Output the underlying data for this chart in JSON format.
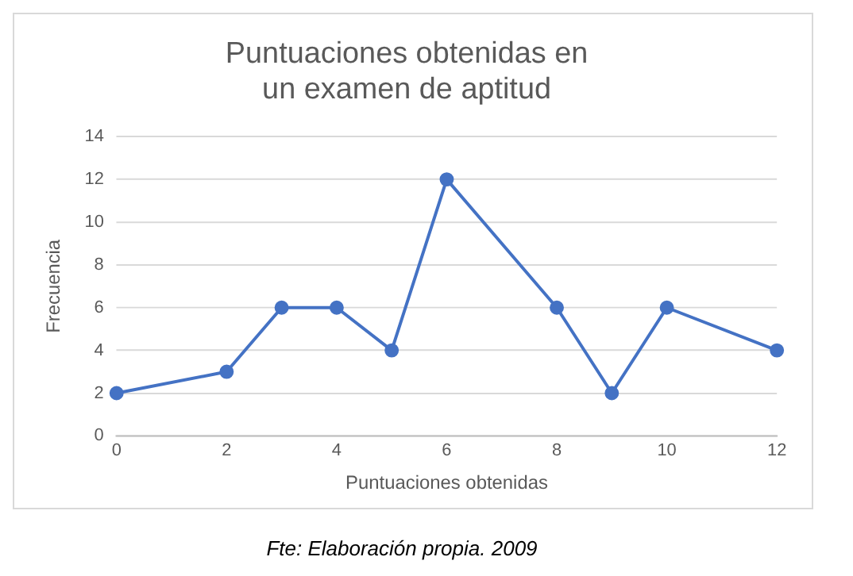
{
  "chart_data": {
    "type": "line",
    "title": "Puntuaciones obtenidas en un examen de aptitud",
    "xlabel": "Puntuaciones obtenidas",
    "ylabel": "Frecuencia",
    "x": [
      0,
      2,
      3,
      4,
      5,
      6,
      8,
      9,
      10,
      12
    ],
    "series": [
      {
        "color": "#4472c4",
        "values": [
          2,
          3,
          6,
          6,
          4,
          12,
          6,
          2,
          6,
          4
        ]
      }
    ],
    "xlim": [
      0,
      12
    ],
    "xticks": [
      0,
      2,
      4,
      6,
      8,
      10,
      12
    ],
    "ylim": [
      0,
      14
    ],
    "yticks": [
      0,
      2,
      4,
      6,
      8,
      10,
      12,
      14
    ],
    "grid": "y",
    "legend": false,
    "marker": "circle",
    "line_style": "solid",
    "annotations": [
      "Fte: Elaboración propia. 2009"
    ]
  }
}
